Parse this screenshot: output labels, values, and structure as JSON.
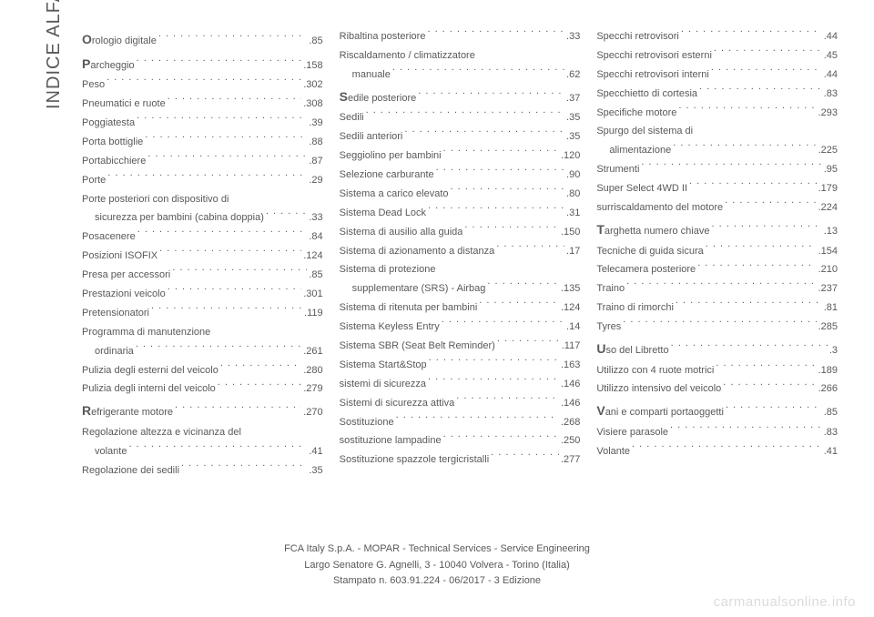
{
  "sideLabel": "INDICE ALFABETICO",
  "footer": {
    "line1": "FCA Italy S.p.A. - MOPAR - Technical Services - Service Engineering",
    "line2": "Largo Senatore G. Agnelli, 3 - 10040 Volvera - Torino (Italia)",
    "line3": "Stampato n. 603.91.224 - 06/2017 - 3 Edizione"
  },
  "watermark": "carmanualsonline.info",
  "columns": [
    [
      {
        "letter": "O",
        "label": "rologio digitale",
        "page": ".85"
      },
      {
        "letter": "P",
        "label": "archeggio",
        "page": ".158"
      },
      {
        "label": "Peso",
        "page": ".302"
      },
      {
        "label": "Pneumatici e ruote",
        "page": ".308"
      },
      {
        "label": "Poggiatesta",
        "page": ".39"
      },
      {
        "label": "Porta bottiglie",
        "page": ".88"
      },
      {
        "label": "Portabicchiere",
        "page": ".87"
      },
      {
        "label": "Porte",
        "page": ".29"
      },
      {
        "label": "Porte posteriori con dispositivo di",
        "sub": "sicurezza per bambini (cabina doppia)",
        "page": ".33",
        "multiline": true
      },
      {
        "label": "Posacenere",
        "page": ".84"
      },
      {
        "label": "Posizioni ISOFIX",
        "page": ".124"
      },
      {
        "label": "Presa per accessori",
        "page": ".85"
      },
      {
        "label": "Prestazioni veicolo",
        "page": ".301"
      },
      {
        "label": "Pretensionatori",
        "page": ".119"
      },
      {
        "label": "Programma di manutenzione",
        "sub": "ordinaria",
        "page": ".261",
        "multiline": true
      },
      {
        "label": "Pulizia degli esterni del veicolo",
        "page": ".280"
      },
      {
        "label": "Pulizia degli interni del veicolo",
        "page": ".279"
      },
      {
        "letter": "R",
        "label": "efrigerante motore",
        "page": ".270"
      },
      {
        "label": "Regolazione altezza e vicinanza del",
        "sub": "volante",
        "page": ".41",
        "multiline": true
      },
      {
        "label": "Regolazione dei sedili",
        "page": ".35"
      }
    ],
    [
      {
        "label": "Ribaltina posteriore",
        "page": ".33"
      },
      {
        "label": "Riscaldamento / climatizzatore",
        "sub": "manuale",
        "page": ".62",
        "multiline": true
      },
      {
        "letter": "S",
        "label": "edile posteriore",
        "page": ".37"
      },
      {
        "label": "Sedili",
        "page": ".35"
      },
      {
        "label": "Sedili anteriori",
        "page": ".35"
      },
      {
        "label": "Seggiolino per bambini",
        "page": ".120"
      },
      {
        "label": "Selezione carburante",
        "page": ".90"
      },
      {
        "label": "Sistema a carico elevato",
        "page": ".80"
      },
      {
        "label": "Sistema Dead Lock",
        "page": ".31"
      },
      {
        "label": "Sistema di ausilio alla guida",
        "page": ".150"
      },
      {
        "label": "Sistema di azionamento a distanza",
        "page": ".17"
      },
      {
        "label": "Sistema di protezione",
        "sub": "supplementare (SRS) - Airbag",
        "page": ".135",
        "multiline": true
      },
      {
        "label": "Sistema di ritenuta per bambini",
        "page": ".124"
      },
      {
        "label": "Sistema Keyless Entry",
        "page": ".14"
      },
      {
        "label": "Sistema SBR (Seat Belt Reminder)",
        "page": ".117"
      },
      {
        "label": "Sistema Start&Stop",
        "page": ".163"
      },
      {
        "label": "sistemi di sicurezza",
        "page": ".146"
      },
      {
        "label": "Sistemi di sicurezza attiva",
        "page": ".146"
      },
      {
        "label": "Sostituzione",
        "page": ".268"
      },
      {
        "label": "sostituzione lampadine",
        "page": ".250"
      },
      {
        "label": "Sostituzione spazzole tergicristalli",
        "page": ".277"
      }
    ],
    [
      {
        "label": "Specchi retrovisori",
        "page": ".44"
      },
      {
        "label": "Specchi retrovisori esterni",
        "page": ".45"
      },
      {
        "label": "Specchi retrovisori interni",
        "page": ".44"
      },
      {
        "label": "Specchietto di cortesia",
        "page": ".83"
      },
      {
        "label": "Specifiche motore",
        "page": ".293"
      },
      {
        "label": "Spurgo del sistema di",
        "sub": "alimentazione",
        "page": ".225",
        "multiline": true
      },
      {
        "label": "Strumenti",
        "page": ".95"
      },
      {
        "label": "Super Select 4WD II",
        "page": ".179"
      },
      {
        "label": "surriscaldamento del motore",
        "page": ".224"
      },
      {
        "letter": "T",
        "label": "arghetta numero chiave",
        "page": ".13"
      },
      {
        "label": "Tecniche di guida sicura",
        "page": ".154"
      },
      {
        "label": "Telecamera posteriore",
        "page": ".210"
      },
      {
        "label": "Traino",
        "page": ".237"
      },
      {
        "label": "Traino di rimorchi",
        "page": ".81"
      },
      {
        "label": "Tyres",
        "page": ".285"
      },
      {
        "letter": "U",
        "label": "so del Libretto",
        "page": ".3"
      },
      {
        "label": "Utilizzo con 4 ruote motrici",
        "page": ".189"
      },
      {
        "label": "Utilizzo intensivo del veicolo",
        "page": ".266"
      },
      {
        "letter": "V",
        "label": "ani e comparti portaoggetti",
        "page": ".85"
      },
      {
        "label": "Visiere parasole",
        "page": ".83"
      },
      {
        "label": "Volante",
        "page": ".41"
      }
    ]
  ]
}
